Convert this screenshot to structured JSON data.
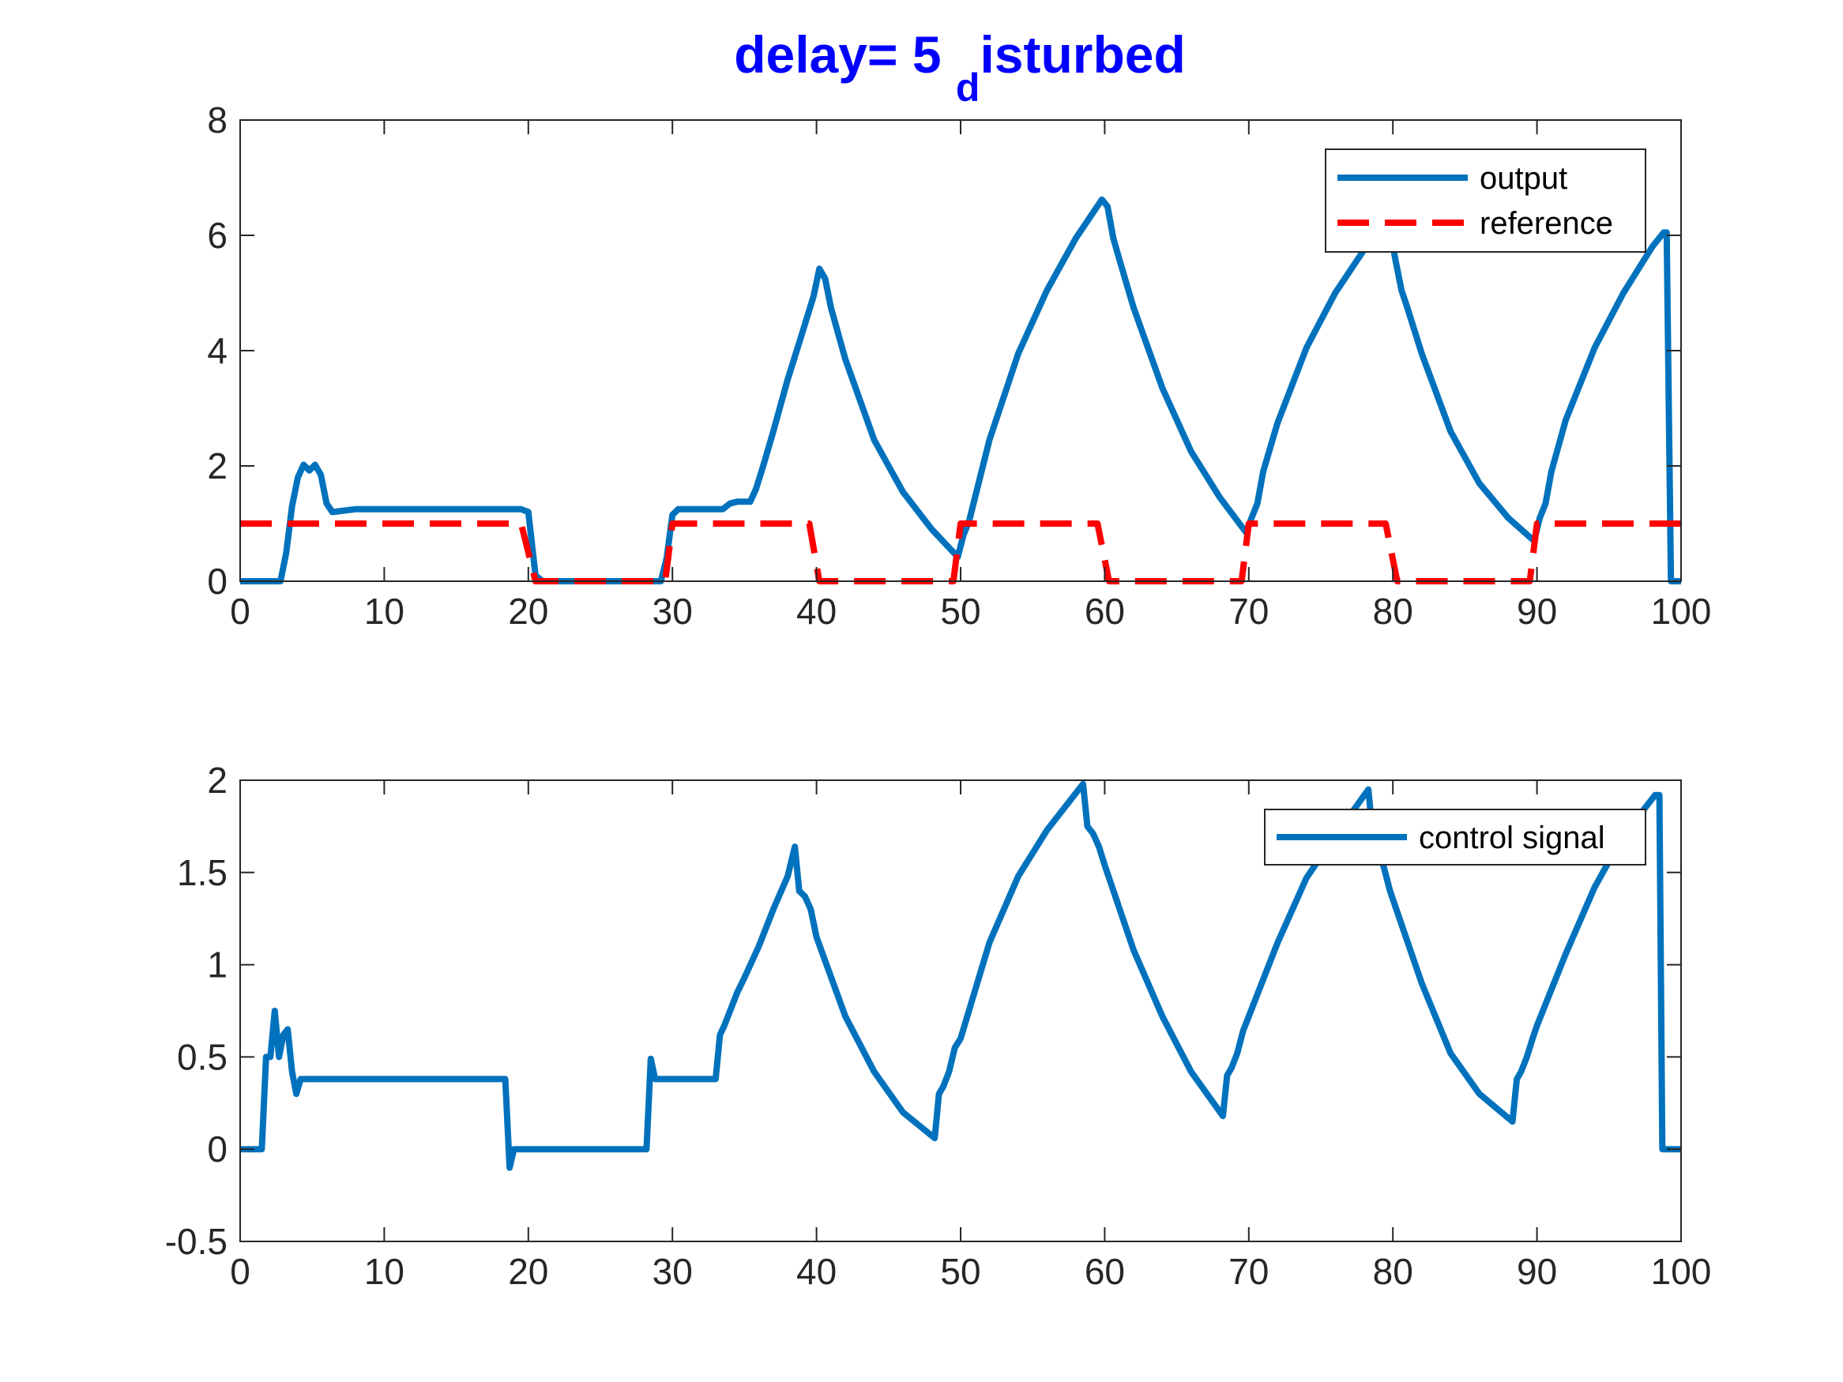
{
  "figure": {
    "title_main": "delay= 5 ",
    "title_sub": "d",
    "title_rest": "isturbed",
    "title_color": "#0000FF"
  },
  "colors": {
    "output": "#0072BD",
    "reference": "#FF0000",
    "control": "#0072BD",
    "axes": "#262626"
  },
  "chart_data": [
    {
      "type": "line",
      "title": "delay= 5 disturbed",
      "xlabel": "",
      "ylabel": "",
      "xlim": [
        0,
        100
      ],
      "ylim": [
        0,
        8
      ],
      "xticks": [
        0,
        10,
        20,
        30,
        40,
        50,
        60,
        70,
        80,
        90,
        100
      ],
      "yticks": [
        0,
        2,
        4,
        6,
        8
      ],
      "grid": false,
      "legend": "top-right",
      "series": [
        {
          "name": "output",
          "style": "solid",
          "x": [
            0,
            2.8,
            3.2,
            3.6,
            4.0,
            4.4,
            4.8,
            5.2,
            5.6,
            6.0,
            6.4,
            8,
            12,
            16,
            19.5,
            20,
            20.5,
            21,
            25,
            28,
            29.2,
            29.6,
            30,
            30.4,
            31,
            32,
            33,
            33.5,
            34,
            34.5,
            35,
            35.4,
            35.8,
            36.3,
            37,
            38,
            39,
            39.8,
            40.2,
            40.6,
            41,
            42,
            44,
            46,
            48,
            49.8,
            50.2,
            50.6,
            51,
            52,
            54,
            56,
            58,
            59.8,
            60.2,
            60.6,
            61,
            62,
            64,
            66,
            68,
            69.8,
            70.2,
            70.6,
            71,
            72,
            74,
            76,
            78,
            79.8,
            80.2,
            80.6,
            81,
            82,
            84,
            86,
            88,
            89.8,
            90.2,
            90.6,
            91,
            92,
            94,
            96,
            98,
            98.8,
            99.0,
            99.3,
            100
          ],
          "y": [
            0,
            0,
            0.5,
            1.3,
            1.8,
            2.02,
            1.92,
            2.02,
            1.85,
            1.35,
            1.2,
            1.25,
            1.25,
            1.25,
            1.25,
            1.2,
            0.1,
            0,
            0,
            0,
            0,
            0.4,
            1.15,
            1.25,
            1.25,
            1.25,
            1.25,
            1.25,
            1.35,
            1.38,
            1.38,
            1.38,
            1.6,
            2.0,
            2.6,
            3.5,
            4.3,
            4.95,
            5.42,
            5.25,
            4.75,
            3.85,
            2.45,
            1.55,
            0.9,
            0.42,
            0.8,
            1.05,
            1.45,
            2.45,
            3.95,
            5.05,
            5.95,
            6.62,
            6.5,
            5.95,
            5.6,
            4.75,
            3.35,
            2.25,
            1.45,
            0.85,
            1.1,
            1.35,
            1.9,
            2.75,
            4.05,
            5.0,
            5.75,
            6.1,
            5.55,
            5.05,
            4.75,
            3.95,
            2.6,
            1.7,
            1.1,
            0.7,
            1.1,
            1.35,
            1.9,
            2.8,
            4.05,
            5.0,
            5.8,
            6.05,
            6.05,
            0,
            0
          ]
        },
        {
          "name": "reference",
          "style": "dashed",
          "x": [
            0,
            19.5,
            20.5,
            29.5,
            30.0,
            39.5,
            40.2,
            49.5,
            50.0,
            59.5,
            60.3,
            69.5,
            70.0,
            79.5,
            80.3,
            89.5,
            90.0,
            100
          ],
          "y": [
            1,
            1,
            0,
            0,
            1,
            1,
            0,
            0,
            1,
            1,
            0,
            0,
            1,
            1,
            0,
            0,
            1,
            1
          ]
        }
      ]
    },
    {
      "type": "line",
      "title": "",
      "xlabel": "",
      "ylabel": "",
      "xlim": [
        0,
        100
      ],
      "ylim": [
        -0.5,
        2
      ],
      "xticks": [
        0,
        10,
        20,
        30,
        40,
        50,
        60,
        70,
        80,
        90,
        100
      ],
      "yticks": [
        -0.5,
        0,
        0.5,
        1,
        1.5,
        2
      ],
      "grid": false,
      "legend": "top-right",
      "series": [
        {
          "name": "control signal",
          "style": "solid",
          "x": [
            0,
            1.5,
            1.8,
            2.1,
            2.4,
            2.7,
            3.0,
            3.3,
            3.6,
            3.9,
            4.2,
            4.5,
            5,
            10,
            15,
            18.4,
            18.7,
            19.0,
            19.3,
            20,
            25,
            28.2,
            28.5,
            28.8,
            29.1,
            30,
            33,
            33.3,
            33.6,
            34,
            34.5,
            35,
            36,
            37,
            38,
            38.5,
            38.8,
            39.2,
            39.6,
            40,
            42,
            44,
            46,
            48.2,
            48.5,
            48.8,
            49.2,
            49.6,
            50,
            52,
            54,
            56,
            58.5,
            58.8,
            59.2,
            59.6,
            60,
            62,
            64,
            66,
            68.2,
            68.5,
            68.8,
            69.2,
            69.6,
            70,
            72,
            74,
            76,
            78.3,
            78.6,
            79,
            79.4,
            79.8,
            82,
            84,
            86,
            88.3,
            88.6,
            88.9,
            89.3,
            89.7,
            90,
            92,
            94,
            96,
            98.2,
            98.5,
            98.7,
            100
          ],
          "y": [
            0,
            0,
            0.5,
            0.5,
            0.75,
            0.5,
            0.62,
            0.65,
            0.42,
            0.3,
            0.38,
            0.38,
            0.38,
            0.38,
            0.38,
            0.38,
            -0.1,
            0,
            0,
            0,
            0,
            0,
            0.49,
            0.38,
            0.38,
            0.38,
            0.38,
            0.62,
            0.67,
            0.75,
            0.85,
            0.93,
            1.1,
            1.3,
            1.48,
            1.64,
            1.4,
            1.37,
            1.3,
            1.15,
            0.72,
            0.42,
            0.2,
            0.06,
            0.3,
            0.34,
            0.42,
            0.55,
            0.6,
            1.12,
            1.48,
            1.73,
            1.98,
            1.75,
            1.71,
            1.64,
            1.54,
            1.08,
            0.72,
            0.42,
            0.18,
            0.4,
            0.44,
            0.52,
            0.64,
            0.72,
            1.12,
            1.47,
            1.7,
            1.95,
            1.7,
            1.62,
            1.52,
            1.4,
            0.9,
            0.52,
            0.3,
            0.15,
            0.38,
            0.42,
            0.5,
            0.6,
            0.67,
            1.06,
            1.42,
            1.7,
            1.92,
            1.92,
            0,
            0
          ]
        }
      ]
    }
  ]
}
